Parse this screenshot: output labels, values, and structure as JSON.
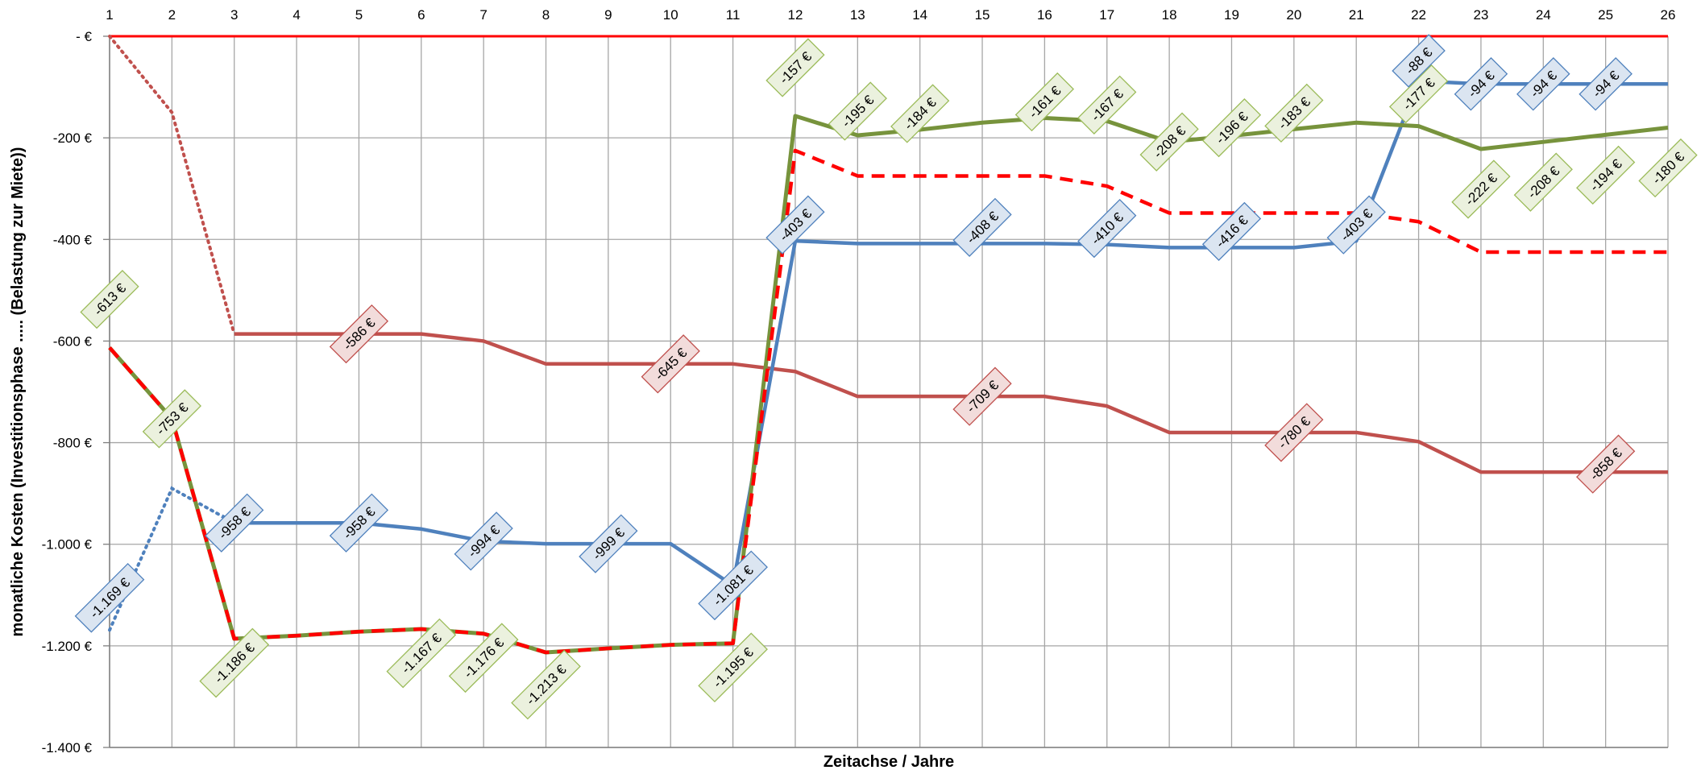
{
  "chart_data": {
    "type": "line",
    "title": "",
    "xlabel": "Zeitachse / Jahre",
    "ylabel": "monatliche Kosten (Investitionsphase ..... (Belastung zur Miete))",
    "x": [
      1,
      2,
      3,
      4,
      5,
      6,
      7,
      8,
      9,
      10,
      11,
      12,
      13,
      14,
      15,
      16,
      17,
      18,
      19,
      20,
      21,
      22,
      23,
      24,
      25,
      26
    ],
    "x_tick_labels": [
      "1",
      "2",
      "3",
      "4",
      "5",
      "6",
      "7",
      "8",
      "9",
      "10",
      "11",
      "12",
      "13",
      "14",
      "15",
      "16",
      "17",
      "18",
      "19",
      "20",
      "21",
      "22",
      "23",
      "24",
      "25",
      "26"
    ],
    "ylim": [
      -1400,
      0
    ],
    "y_ticks": [
      0,
      -200,
      -400,
      -600,
      -800,
      -1000,
      -1200,
      -1400
    ],
    "y_tick_labels": [
      " -  €",
      "-200 €",
      "-400 €",
      "-600 €",
      "-800 €",
      "-1.000 €",
      "-1.200 €",
      "-1.400 €"
    ],
    "grid": true,
    "legend": "none",
    "colors": {
      "red_series": "#c0504d",
      "blue_series": "#4f81bd",
      "green_series": "#77933c",
      "dashed_red": "#ff0000",
      "zero_line": "#ff0000",
      "grid": "#a6a6a6",
      "label_blue_fill": "#dbe5f1",
      "label_red_fill": "#f2dcdb",
      "label_green_fill": "#ebf1de"
    },
    "series": [
      {
        "style": "solid",
        "color": "#c0504d",
        "values": [
          0,
          -150,
          -586,
          -586,
          -586,
          -586,
          -600,
          -645,
          -645,
          -645,
          -645,
          -660,
          -709,
          -709,
          -709,
          -709,
          -728,
          -780,
          -780,
          -780,
          -780,
          -798,
          -858,
          -858,
          -858,
          -858
        ],
        "dotted_until_x": 3
      },
      {
        "style": "solid",
        "color": "#4f81bd",
        "values": [
          -1169,
          -890,
          -958,
          -958,
          -958,
          -970,
          -994,
          -999,
          -999,
          -999,
          -1081,
          -403,
          -408,
          -408,
          -408,
          -408,
          -410,
          -416,
          -416,
          -416,
          -403,
          -88,
          -94,
          -94,
          -94,
          -94
        ],
        "dotted_until_x": 2.8
      },
      {
        "style": "solid",
        "color": "#77933c",
        "values": [
          -613,
          -753,
          -1186,
          -1180,
          -1172,
          -1167,
          -1176,
          -1213,
          -1205,
          -1198,
          -1195,
          -157,
          -195,
          -184,
          -170,
          -161,
          -167,
          -208,
          -196,
          -183,
          -170,
          -177,
          -222,
          -208,
          -194,
          -180
        ]
      },
      {
        "style": "dashed",
        "color": "#ff0000",
        "values": [
          -613,
          -753,
          -1186,
          -1180,
          -1172,
          -1167,
          -1176,
          -1213,
          -1205,
          -1198,
          -1195,
          -225,
          -275,
          -275,
          -275,
          -275,
          -295,
          -348,
          -348,
          -348,
          -348,
          -365,
          -425,
          -425,
          -425,
          -425
        ]
      }
    ],
    "data_labels": [
      {
        "text": "-613 €",
        "x": 1,
        "y": -613,
        "style": "green"
      },
      {
        "text": "-753 €",
        "x": 2,
        "y": -753,
        "style": "green"
      },
      {
        "text": "-1.186 €",
        "x": 3,
        "y": -1186,
        "style": "green"
      },
      {
        "text": "-1.167 €",
        "x": 6,
        "y": -1167,
        "style": "green"
      },
      {
        "text": "-1.176 €",
        "x": 7,
        "y": -1176,
        "style": "green"
      },
      {
        "text": "-1.213 €",
        "x": 8,
        "y": -1213,
        "style": "green"
      },
      {
        "text": "-1.195 €",
        "x": 11,
        "y": -1195,
        "style": "green"
      },
      {
        "text": "-157 €",
        "x": 12,
        "y": -157,
        "style": "green"
      },
      {
        "text": "-195 €",
        "x": 13,
        "y": -195,
        "style": "green"
      },
      {
        "text": "-184 €",
        "x": 14,
        "y": -184,
        "style": "green"
      },
      {
        "text": "-161 €",
        "x": 16,
        "y": -161,
        "style": "green"
      },
      {
        "text": "-167 €",
        "x": 17,
        "y": -167,
        "style": "green"
      },
      {
        "text": "-208 €",
        "x": 18,
        "y": -208,
        "style": "green"
      },
      {
        "text": "-196 €",
        "x": 19,
        "y": -196,
        "style": "green"
      },
      {
        "text": "-183 €",
        "x": 20,
        "y": -183,
        "style": "green"
      },
      {
        "text": "-177 €",
        "x": 22,
        "y": -177,
        "style": "green"
      },
      {
        "text": "-222 €",
        "x": 23,
        "y": -222,
        "style": "green"
      },
      {
        "text": "-208 €",
        "x": 24,
        "y": -208,
        "style": "green"
      },
      {
        "text": "-194 €",
        "x": 25,
        "y": -194,
        "style": "green"
      },
      {
        "text": "-180 €",
        "x": 26,
        "y": -180,
        "style": "green"
      },
      {
        "text": "-1.169 €",
        "x": 1,
        "y": -1169,
        "style": "blue"
      },
      {
        "text": "-958 €",
        "x": 3,
        "y": -958,
        "style": "blue"
      },
      {
        "text": "-958 €",
        "x": 5,
        "y": -958,
        "style": "blue"
      },
      {
        "text": "-994 €",
        "x": 7,
        "y": -994,
        "style": "blue"
      },
      {
        "text": "-999 €",
        "x": 9,
        "y": -999,
        "style": "blue"
      },
      {
        "text": "-1.081 €",
        "x": 11,
        "y": -1081,
        "style": "blue"
      },
      {
        "text": "-403 €",
        "x": 12,
        "y": -403,
        "style": "blue"
      },
      {
        "text": "-408 €",
        "x": 15,
        "y": -408,
        "style": "blue"
      },
      {
        "text": "-410 €",
        "x": 17,
        "y": -410,
        "style": "blue"
      },
      {
        "text": "-416 €",
        "x": 19,
        "y": -416,
        "style": "blue"
      },
      {
        "text": "-403 €",
        "x": 21,
        "y": -403,
        "style": "blue"
      },
      {
        "text": "-88 €",
        "x": 22,
        "y": -88,
        "style": "blue"
      },
      {
        "text": "-94 €",
        "x": 23,
        "y": -94,
        "style": "blue"
      },
      {
        "text": "-94 €",
        "x": 24,
        "y": -94,
        "style": "blue"
      },
      {
        "text": "-94 €",
        "x": 25,
        "y": -94,
        "style": "blue"
      },
      {
        "text": "-586 €",
        "x": 5,
        "y": -586,
        "style": "red"
      },
      {
        "text": "-645 €",
        "x": 10,
        "y": -645,
        "style": "red"
      },
      {
        "text": "-709 €",
        "x": 15,
        "y": -709,
        "style": "red"
      },
      {
        "text": "-780 €",
        "x": 20,
        "y": -780,
        "style": "red"
      },
      {
        "text": "-858 €",
        "x": 25,
        "y": -858,
        "style": "red"
      }
    ]
  }
}
